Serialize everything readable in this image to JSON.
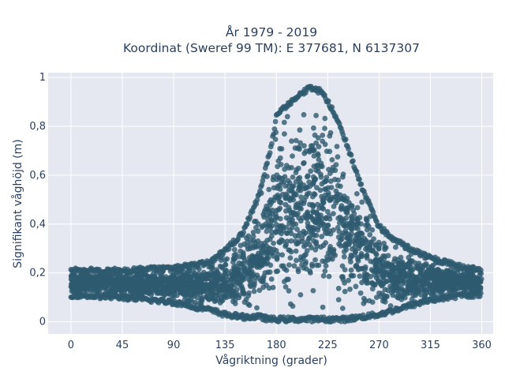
{
  "chart_data": {
    "type": "scatter",
    "title_line1": "År 1979 - 2019",
    "title_line2": "Koordinat (Sweref 99 TM): E 377681, N 6137307",
    "xlabel": "Vågriktning (grader)",
    "ylabel": "Signifikant våghöjd (m)",
    "xlim": [
      -20,
      370
    ],
    "ylim": [
      -0.05,
      1.02
    ],
    "x_ticks": [
      0,
      45,
      90,
      135,
      180,
      225,
      270,
      315,
      360
    ],
    "x_tick_labels": [
      "0",
      "45",
      "90",
      "135",
      "180",
      "225",
      "270",
      "315",
      "360"
    ],
    "y_ticks": [
      0,
      0.2,
      0.4,
      0.6,
      0.8,
      1
    ],
    "y_tick_labels": [
      "0",
      "0,2",
      "0,4",
      "0,6",
      "0,8",
      "1"
    ],
    "grid": true,
    "marker_color": "#2e5a6f",
    "background_color": "#e5e8f1",
    "series": [
      {
        "description": "dense point cloud: lower and upper bound of wave height per direction",
        "x": [
          0,
          45,
          90,
          120,
          135,
          150,
          165,
          175,
          180,
          190,
          200,
          210,
          220,
          230,
          240,
          255,
          270,
          285,
          300,
          315,
          330,
          345,
          360
        ],
        "y_min": [
          0.1,
          0.09,
          0.07,
          0.04,
          0.02,
          0.01,
          0.01,
          0.0,
          0.0,
          0.0,
          0.0,
          0.0,
          0.0,
          0.0,
          0.0,
          0.01,
          0.02,
          0.04,
          0.06,
          0.08,
          0.09,
          0.1,
          0.1
        ],
        "y_max": [
          0.22,
          0.22,
          0.23,
          0.25,
          0.3,
          0.37,
          0.53,
          0.72,
          0.85,
          0.9,
          0.94,
          0.97,
          0.95,
          0.87,
          0.76,
          0.56,
          0.4,
          0.34,
          0.3,
          0.27,
          0.25,
          0.23,
          0.22
        ]
      }
    ]
  }
}
